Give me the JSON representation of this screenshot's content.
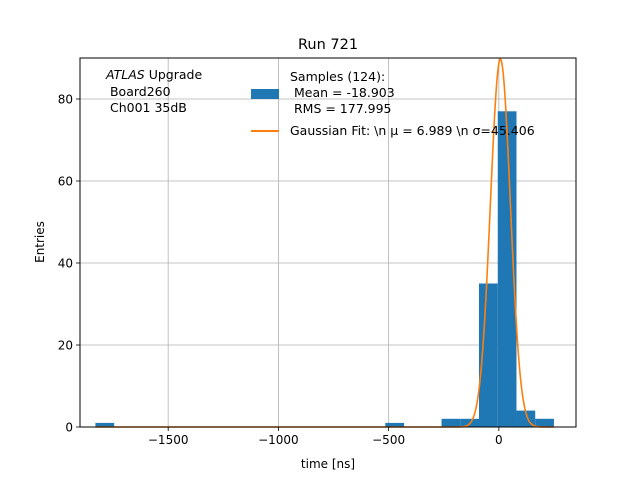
{
  "chart_data": {
    "type": "bar",
    "title": "Run 721",
    "xlabel": "time [ns]",
    "ylabel": "Entries",
    "xlim": [
      -1900,
      350
    ],
    "ylim": [
      0,
      90
    ],
    "grid": true,
    "xticks": [
      -1500,
      -1000,
      -500,
      0
    ],
    "xtick_labels": [
      "−1500",
      "−1000",
      "−500",
      "0"
    ],
    "yticks": [
      0,
      20,
      40,
      60,
      80
    ],
    "ytick_labels": [
      "0",
      "20",
      "40",
      "60",
      "80"
    ],
    "annotation": {
      "line1_italic": "ATLAS",
      "line1_rest": " Upgrade",
      "line2": " Board260",
      "line3": " Ch001 35dB"
    },
    "histogram": {
      "name_lines": [
        "Samples (124):",
        " Mean = -18.903",
        " RMS = 177.995"
      ],
      "color": "#1f77b4",
      "bins": [
        {
          "x0": -1830,
          "x1": -1745,
          "count": 1
        },
        {
          "x0": -515,
          "x1": -430,
          "count": 1
        },
        {
          "x0": -260,
          "x1": -175,
          "count": 2
        },
        {
          "x0": -175,
          "x1": -90,
          "count": 2
        },
        {
          "x0": -90,
          "x1": -5,
          "count": 35
        },
        {
          "x0": -5,
          "x1": 80,
          "count": 77
        },
        {
          "x0": 80,
          "x1": 165,
          "count": 4
        },
        {
          "x0": 165,
          "x1": 250,
          "count": 2
        }
      ]
    },
    "fit": {
      "name": "Gaussian Fit: \\n μ = 6.989 \\n σ=45.406",
      "color": "#ff7f0e",
      "mu": 6.989,
      "sigma": 45.406,
      "amplitude": 89.7,
      "x_range": [
        -1830,
        250
      ]
    },
    "legend_location": "top-center"
  }
}
